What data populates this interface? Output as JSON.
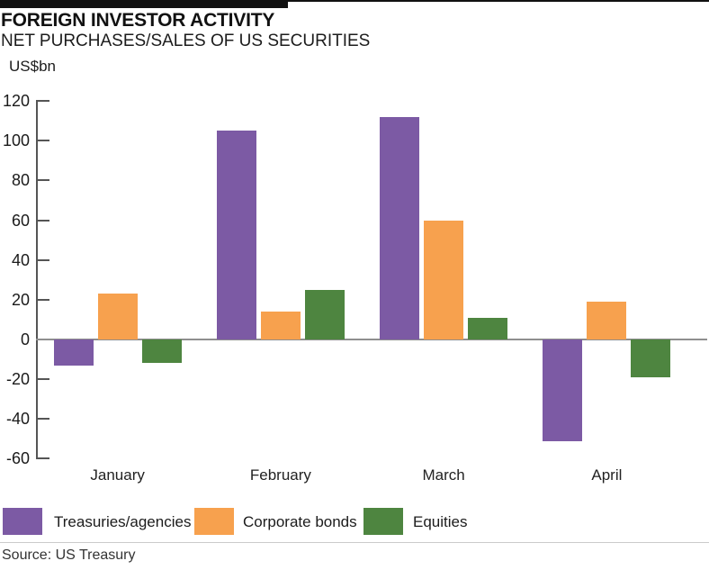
{
  "header": {
    "title": "FOREIGN INVESTOR ACTIVITY",
    "subtitle": "NET PURCHASES/SALES OF US SECURITIES",
    "unit_label": "US$bn"
  },
  "source": "Source: US Treasury",
  "chart_data": {
    "type": "bar",
    "title": "FOREIGN INVESTOR ACTIVITY",
    "subtitle": "NET PURCHASES/SALES OF US SECURITIES",
    "ylabel": "US$bn",
    "categories": [
      "January",
      "February",
      "March",
      "April"
    ],
    "series": [
      {
        "name": "Treasuries/agencies",
        "color": "#7C5AA4",
        "values": [
          -13,
          105,
          112,
          -51
        ]
      },
      {
        "name": "Corporate bonds",
        "color": "#F7A14E",
        "values": [
          23,
          14,
          60,
          19
        ]
      },
      {
        "name": "Equities",
        "color": "#4E8540",
        "values": [
          -12,
          25,
          11,
          -19
        ]
      }
    ],
    "ylim": [
      -60,
      120
    ],
    "yticks": [
      120,
      100,
      80,
      60,
      40,
      20,
      0,
      -20,
      -40,
      -60
    ],
    "grid": false,
    "legend_position": "bottom",
    "baseline_color": "#8f8f8f",
    "axis_color": "#555555"
  }
}
